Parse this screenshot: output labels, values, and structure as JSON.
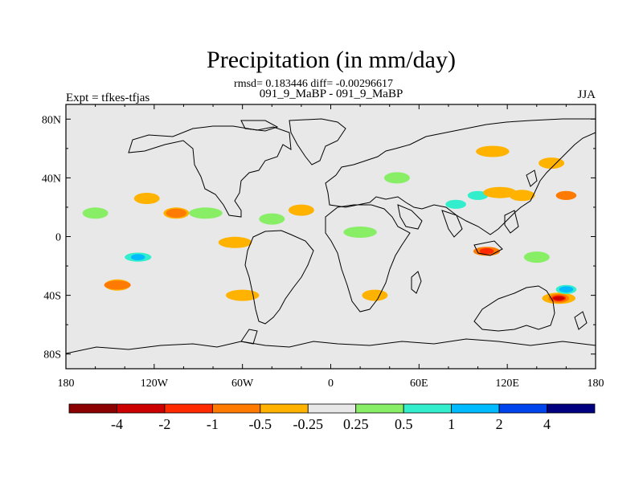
{
  "title": "Precipitation (in mm/day)",
  "stats": "rmsd= 0.183446 diff= -0.00296617",
  "comparison": "091_9_MaBP - 091_9_MaBP",
  "experiment": "Expt = tfkes-tfjas",
  "season": "JJA",
  "map": {
    "projection": "cylindrical-equidistant",
    "background_color": "#e8e8e8",
    "lat_ticks": [
      {
        "value": 80,
        "label": "80N"
      },
      {
        "value": 40,
        "label": "40N"
      },
      {
        "value": 0,
        "label": "0"
      },
      {
        "value": -40,
        "label": "40S"
      },
      {
        "value": -80,
        "label": "80S"
      }
    ],
    "lon_ticks": [
      {
        "value": -180,
        "label": "180"
      },
      {
        "value": -120,
        "label": "120W"
      },
      {
        "value": -60,
        "label": "60W"
      },
      {
        "value": 0,
        "label": "0"
      },
      {
        "value": 60,
        "label": "60E"
      },
      {
        "value": 120,
        "label": "120E"
      },
      {
        "value": 180,
        "label": "180"
      }
    ],
    "lon_range": [
      -180,
      180
    ],
    "lat_range": [
      -90,
      90
    ]
  },
  "colorbar": {
    "colors": [
      "#8b0000",
      "#cc0000",
      "#ff2a00",
      "#ff7a00",
      "#ffb300",
      "#e8e8e8",
      "#88ee66",
      "#33eecc",
      "#00bbff",
      "#0044ee",
      "#000080"
    ],
    "labels": [
      "-4",
      "-2",
      "-1",
      "-0.5",
      "-0.25",
      "0.25",
      "0.5",
      "1",
      "2",
      "4"
    ]
  },
  "chart_data": {
    "type": "heatmap",
    "title": "Precipitation (in mm/day)",
    "variable": "Precipitation difference",
    "units": "mm/day",
    "season": "JJA",
    "rmsd": 0.183446,
    "diff": -0.00296617,
    "levels": [
      -4,
      -2,
      -1,
      -0.5,
      -0.25,
      0.25,
      0.5,
      1,
      2,
      4
    ],
    "features": [
      {
        "lon": -131,
        "lat": -14,
        "level": 0.5
      },
      {
        "lon": -131,
        "lat": -14,
        "level": 1
      },
      {
        "lon": -145,
        "lat": -33,
        "level": -0.25
      },
      {
        "lon": -145,
        "lat": -33,
        "level": -0.5
      },
      {
        "lon": -105,
        "lat": 16,
        "level": -0.25
      },
      {
        "lon": -105,
        "lat": 16,
        "level": -0.5
      },
      {
        "lon": -85,
        "lat": 16,
        "level": 0.25
      },
      {
        "lon": -160,
        "lat": 16,
        "level": 0.25
      },
      {
        "lon": -125,
        "lat": 26,
        "level": -0.25
      },
      {
        "lon": -65,
        "lat": -4,
        "level": -0.25
      },
      {
        "lon": -20,
        "lat": 18,
        "level": -0.25
      },
      {
        "lon": -40,
        "lat": 12,
        "level": 0.25
      },
      {
        "lon": 20,
        "lat": 3,
        "level": 0.25
      },
      {
        "lon": 85,
        "lat": 22,
        "level": 0.5
      },
      {
        "lon": 100,
        "lat": 28,
        "level": 0.5
      },
      {
        "lon": 115,
        "lat": 30,
        "level": -0.25
      },
      {
        "lon": 130,
        "lat": 28,
        "level": -0.25
      },
      {
        "lon": 160,
        "lat": 28,
        "level": -0.5
      },
      {
        "lon": 106,
        "lat": -10,
        "level": -0.5
      },
      {
        "lon": 106,
        "lat": -10,
        "level": -1
      },
      {
        "lon": 140,
        "lat": -14,
        "level": 0.25
      },
      {
        "lon": 155,
        "lat": -42,
        "level": -0.25
      },
      {
        "lon": 155,
        "lat": -42,
        "level": -0.5
      },
      {
        "lon": 155,
        "lat": -42,
        "level": -1
      },
      {
        "lon": 155,
        "lat": -42,
        "level": -2
      },
      {
        "lon": 160,
        "lat": -36,
        "level": 0.5
      },
      {
        "lon": 160,
        "lat": -36,
        "level": 1
      },
      {
        "lon": 110,
        "lat": 58,
        "level": -0.25
      },
      {
        "lon": 150,
        "lat": 50,
        "level": -0.25
      },
      {
        "lon": 45,
        "lat": 40,
        "level": 0.25
      },
      {
        "lon": -60,
        "lat": -40,
        "level": -0.25
      },
      {
        "lon": 30,
        "lat": -40,
        "level": -0.25
      }
    ]
  }
}
